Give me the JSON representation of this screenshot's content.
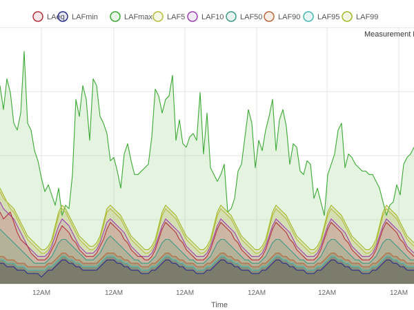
{
  "chart_data": {
    "type": "area",
    "xlabel": "Time",
    "annotation": "Measurement F",
    "legend_position": "top",
    "grid": true,
    "x_tick_labels": [
      "12AM",
      "12AM",
      "12AM",
      "12AM",
      "12AM",
      "12AM"
    ],
    "ylim": [
      35,
      110
    ],
    "x": [
      0,
      1,
      2,
      3,
      4,
      5,
      6,
      7,
      8,
      9,
      10,
      11,
      12,
      13,
      14,
      15,
      16,
      17,
      18,
      19,
      20,
      21,
      22,
      23,
      24,
      25,
      26,
      27,
      28,
      29,
      30,
      31,
      32,
      33,
      34,
      35,
      36,
      37,
      38,
      39,
      40,
      41,
      42,
      43,
      44,
      45,
      46,
      47,
      48,
      49,
      50,
      51,
      52,
      53,
      54,
      55,
      56,
      57,
      58,
      59,
      60,
      61,
      62,
      63,
      64,
      65,
      66,
      67,
      68,
      69,
      70,
      71,
      72,
      73,
      74,
      75,
      76,
      77,
      78,
      79,
      80,
      81,
      82,
      83,
      84,
      85,
      86,
      87,
      88,
      89,
      90,
      91,
      92,
      93,
      94,
      95,
      96,
      97,
      98,
      99,
      100,
      101,
      102,
      103,
      104,
      105,
      106,
      107,
      108,
      109,
      110,
      111,
      112,
      113,
      114,
      115,
      116,
      117,
      118,
      119,
      120
    ],
    "series": [
      {
        "name": "LAFmax",
        "color": "#3aa832",
        "fill": "rgba(130,205,120,0.22)",
        "values": [
          93,
          86,
          95,
          91,
          82,
          80,
          85,
          103,
          82,
          80,
          74,
          71,
          66,
          62,
          64,
          61,
          58,
          63,
          55,
          58,
          57,
          67,
          89,
          84,
          93,
          89,
          77,
          95,
          93,
          84,
          82,
          79,
          71,
          72,
          68,
          63,
          73,
          76,
          71,
          67,
          67,
          68,
          69,
          70,
          78,
          92,
          90,
          85,
          89,
          90,
          96,
          77,
          83,
          76,
          75,
          78,
          79,
          77,
          91,
          73,
          85,
          69,
          67,
          65,
          67,
          70,
          56,
          57,
          60,
          68,
          70,
          78,
          86,
          82,
          69,
          77,
          74,
          80,
          84,
          89,
          74,
          83,
          86,
          81,
          70,
          76,
          75,
          68,
          67,
          71,
          70,
          60,
          63,
          59,
          55,
          67,
          70,
          73,
          80,
          82,
          69,
          73,
          72,
          70,
          69,
          68,
          68,
          67,
          67,
          65,
          63,
          59,
          55,
          58,
          59,
          64,
          61,
          70,
          72,
          73,
          75
        ]
      },
      {
        "name": "LAF99",
        "color": "#a3b825",
        "fill": "rgba(200,200,120,0.30)",
        "values": [
          63,
          61,
          59,
          58,
          57,
          55,
          53,
          51,
          49,
          48,
          47,
          46,
          45,
          45,
          46,
          48,
          52,
          56,
          58,
          57,
          55,
          53,
          51,
          49,
          48,
          47,
          46,
          46,
          47,
          49,
          53,
          57,
          58,
          57,
          56,
          55,
          53,
          51,
          49,
          48,
          47,
          46,
          45,
          45,
          46,
          48,
          52,
          56,
          58,
          57,
          56,
          55,
          53,
          51,
          49,
          48,
          47,
          46,
          45,
          45,
          46,
          48,
          52,
          56,
          58,
          57,
          56,
          55,
          53,
          51,
          49,
          48,
          47,
          46,
          45,
          45,
          46,
          48,
          52,
          56,
          58,
          57,
          56,
          55,
          53,
          51,
          49,
          48,
          47,
          46,
          45,
          45,
          46,
          48,
          52,
          56,
          58,
          57,
          56,
          55,
          53,
          51,
          49,
          48,
          47,
          46,
          45,
          45,
          46,
          48,
          52,
          56,
          58,
          57,
          56,
          55,
          53,
          51,
          49,
          48,
          47
        ]
      },
      {
        "name": "LAF5",
        "color": "#b5bc3a",
        "fill": "rgba(190,190,110,0.18)",
        "values": [
          62,
          60,
          59,
          57,
          56,
          54,
          52,
          50,
          48,
          47,
          46,
          45,
          44,
          44,
          45,
          47,
          51,
          55,
          57,
          56,
          54,
          52,
          50,
          48,
          47,
          46,
          45,
          45,
          46,
          48,
          52,
          56,
          57,
          56,
          55,
          54,
          52,
          50,
          48,
          47,
          46,
          45,
          44,
          44,
          45,
          47,
          51,
          55,
          57,
          56,
          55,
          54,
          52,
          50,
          48,
          47,
          46,
          45,
          44,
          44,
          45,
          47,
          51,
          55,
          57,
          56,
          55,
          54,
          52,
          50,
          48,
          47,
          46,
          45,
          44,
          44,
          45,
          47,
          51,
          55,
          57,
          56,
          55,
          54,
          52,
          50,
          48,
          47,
          46,
          45,
          44,
          44,
          45,
          47,
          51,
          55,
          57,
          56,
          55,
          54,
          52,
          50,
          48,
          47,
          46,
          45,
          44,
          44,
          45,
          47,
          51,
          55,
          57,
          56,
          55,
          54,
          52,
          50,
          48,
          47,
          46
        ]
      },
      {
        "name": "LAF10",
        "color": "#9b3fb0",
        "fill": "rgba(180,120,190,0.20)",
        "values": [
          59,
          57,
          56,
          55,
          54,
          52,
          50,
          48,
          46,
          45,
          44,
          43,
          43,
          43,
          44,
          46,
          49,
          52,
          54,
          53,
          52,
          50,
          48,
          46,
          45,
          44,
          44,
          44,
          45,
          47,
          50,
          53,
          54,
          53,
          52,
          51,
          50,
          48,
          46,
          45,
          44,
          43,
          43,
          43,
          44,
          46,
          49,
          52,
          54,
          53,
          52,
          51,
          50,
          48,
          46,
          45,
          44,
          43,
          43,
          43,
          44,
          46,
          49,
          52,
          54,
          53,
          52,
          51,
          50,
          48,
          46,
          45,
          44,
          43,
          43,
          43,
          44,
          46,
          49,
          52,
          54,
          53,
          52,
          51,
          50,
          48,
          46,
          45,
          44,
          43,
          43,
          43,
          44,
          46,
          49,
          52,
          54,
          53,
          52,
          51,
          50,
          48,
          46,
          45,
          44,
          43,
          43,
          43,
          44,
          46,
          49,
          52,
          54,
          53,
          52,
          51,
          50,
          48,
          46,
          45,
          44
        ]
      },
      {
        "name": "LAeq",
        "color": "#b5303a",
        "fill": "rgba(205,140,130,0.30)",
        "values": [
          56,
          54,
          55,
          56,
          53,
          50,
          48,
          47,
          46,
          44,
          43,
          42,
          42,
          42,
          43,
          45,
          47,
          50,
          52,
          51,
          50,
          48,
          47,
          45,
          44,
          43,
          43,
          43,
          44,
          46,
          48,
          51,
          53,
          52,
          51,
          50,
          48,
          47,
          45,
          44,
          43,
          43,
          42,
          42,
          43,
          45,
          48,
          51,
          53,
          52,
          51,
          50,
          48,
          47,
          45,
          44,
          43,
          42,
          42,
          42,
          43,
          45,
          48,
          51,
          53,
          52,
          51,
          50,
          48,
          47,
          45,
          44,
          43,
          42,
          42,
          42,
          43,
          45,
          48,
          51,
          53,
          52,
          51,
          50,
          48,
          47,
          45,
          44,
          43,
          42,
          42,
          42,
          43,
          45,
          48,
          51,
          53,
          52,
          51,
          50,
          48,
          47,
          45,
          44,
          43,
          42,
          42,
          42,
          43,
          45,
          48,
          51,
          53,
          52,
          51,
          50,
          48,
          47,
          45,
          44,
          43
        ]
      },
      {
        "name": "LAF50",
        "color": "#3b9a88",
        "fill": "rgba(120,170,130,0.28)",
        "values": [
          51,
          50,
          49,
          48,
          47,
          46,
          45,
          44,
          43,
          42,
          41,
          41,
          41,
          41,
          42,
          43,
          45,
          47,
          48,
          48,
          47,
          46,
          45,
          44,
          43,
          42,
          42,
          42,
          43,
          44,
          46,
          48,
          49,
          48,
          47,
          46,
          45,
          44,
          43,
          42,
          42,
          41,
          41,
          41,
          42,
          43,
          45,
          47,
          48,
          48,
          47,
          46,
          45,
          44,
          43,
          42,
          42,
          41,
          41,
          41,
          42,
          43,
          45,
          47,
          48,
          48,
          47,
          46,
          45,
          44,
          43,
          42,
          42,
          41,
          41,
          41,
          42,
          43,
          45,
          47,
          48,
          48,
          47,
          46,
          45,
          44,
          43,
          42,
          42,
          41,
          41,
          41,
          42,
          43,
          45,
          47,
          48,
          48,
          47,
          46,
          45,
          44,
          43,
          42,
          42,
          41,
          41,
          41,
          42,
          43,
          45,
          47,
          48,
          48,
          47,
          46,
          45,
          44,
          43,
          42,
          42
        ]
      },
      {
        "name": "LAF90",
        "color": "#b8683a",
        "fill": "rgba(140,140,110,0.40)",
        "values": [
          43,
          43,
          42,
          42,
          42,
          41,
          41,
          41,
          40,
          40,
          40,
          40,
          40,
          40,
          41,
          41,
          42,
          43,
          44,
          44,
          43,
          43,
          42,
          42,
          41,
          41,
          41,
          41,
          41,
          42,
          43,
          44,
          44,
          44,
          43,
          43,
          42,
          42,
          41,
          41,
          41,
          40,
          40,
          40,
          41,
          41,
          42,
          43,
          44,
          44,
          43,
          43,
          42,
          42,
          41,
          41,
          41,
          40,
          40,
          40,
          41,
          41,
          42,
          43,
          44,
          44,
          43,
          43,
          42,
          42,
          41,
          41,
          41,
          40,
          40,
          40,
          41,
          41,
          42,
          43,
          44,
          44,
          43,
          43,
          42,
          42,
          41,
          41,
          41,
          40,
          40,
          40,
          41,
          41,
          42,
          43,
          44,
          44,
          43,
          43,
          42,
          42,
          41,
          41,
          41,
          40,
          40,
          40,
          41,
          41,
          42,
          43,
          44,
          44,
          43,
          43,
          42,
          42,
          41,
          41,
          41
        ]
      },
      {
        "name": "LAF95",
        "color": "#45b8b0",
        "fill": "rgba(110,120,100,0.45)",
        "values": [
          42,
          42,
          41,
          41,
          41,
          40,
          40,
          40,
          39,
          39,
          39,
          39,
          39,
          39,
          40,
          40,
          41,
          42,
          43,
          43,
          42,
          42,
          41,
          41,
          40,
          40,
          40,
          40,
          40,
          41,
          42,
          43,
          43,
          43,
          42,
          42,
          41,
          41,
          40,
          40,
          40,
          39,
          39,
          39,
          40,
          40,
          41,
          42,
          43,
          43,
          42,
          42,
          41,
          41,
          40,
          40,
          40,
          39,
          39,
          39,
          40,
          40,
          41,
          42,
          43,
          43,
          42,
          42,
          41,
          41,
          40,
          40,
          40,
          39,
          39,
          39,
          40,
          40,
          41,
          42,
          43,
          43,
          42,
          42,
          41,
          41,
          40,
          40,
          40,
          39,
          39,
          39,
          40,
          40,
          41,
          42,
          43,
          43,
          42,
          42,
          41,
          41,
          40,
          40,
          40,
          39,
          39,
          39,
          40,
          40,
          41,
          42,
          43,
          43,
          42,
          42,
          41,
          41,
          40,
          40,
          40
        ]
      },
      {
        "name": "LAFmin",
        "color": "#2c2f8a",
        "fill": "rgba(110,110,100,0.55)",
        "values": [
          41,
          41,
          40,
          40,
          40,
          39,
          39,
          39,
          38,
          38,
          38,
          38,
          37,
          38,
          39,
          39,
          40,
          41,
          42,
          42,
          41,
          41,
          40,
          40,
          39,
          39,
          39,
          39,
          39,
          40,
          41,
          42,
          42,
          42,
          41,
          41,
          40,
          40,
          39,
          39,
          39,
          38,
          38,
          38,
          39,
          39,
          40,
          41,
          42,
          42,
          41,
          41,
          40,
          40,
          39,
          39,
          39,
          38,
          38,
          38,
          39,
          39,
          40,
          41,
          42,
          42,
          41,
          41,
          40,
          40,
          39,
          39,
          39,
          38,
          38,
          38,
          39,
          39,
          40,
          41,
          42,
          42,
          41,
          41,
          40,
          40,
          39,
          39,
          39,
          38,
          38,
          38,
          39,
          39,
          40,
          41,
          42,
          42,
          41,
          41,
          40,
          40,
          39,
          39,
          39,
          38,
          38,
          38,
          39,
          39,
          40,
          41,
          42,
          42,
          41,
          41,
          40,
          40,
          39,
          39,
          39
        ]
      }
    ]
  },
  "legend": [
    {
      "label": "LAeq",
      "color": "#b5303a",
      "fill": "rgba(181,48,58,0.12)"
    },
    {
      "label": "LAFmin",
      "color": "#2c2f8a",
      "fill": "rgba(44,47,138,0.12)"
    },
    {
      "label": "LAFmax",
      "color": "#3aa832",
      "fill": "rgba(58,168,50,0.12)"
    },
    {
      "label": "LAF5",
      "color": "#b5bc3a",
      "fill": "rgba(181,188,58,0.12)"
    },
    {
      "label": "LAF10",
      "color": "#9b3fb0",
      "fill": "rgba(155,63,176,0.12)"
    },
    {
      "label": "LAF50",
      "color": "#3b9a88",
      "fill": "rgba(59,154,136,0.12)"
    },
    {
      "label": "LAF90",
      "color": "#b8683a",
      "fill": "rgba(184,104,58,0.12)"
    },
    {
      "label": "LAF95",
      "color": "#45b8b0",
      "fill": "rgba(69,184,176,0.12)"
    },
    {
      "label": "LAF99",
      "color": "#a3b825",
      "fill": "rgba(163,184,37,0.12)"
    }
  ]
}
